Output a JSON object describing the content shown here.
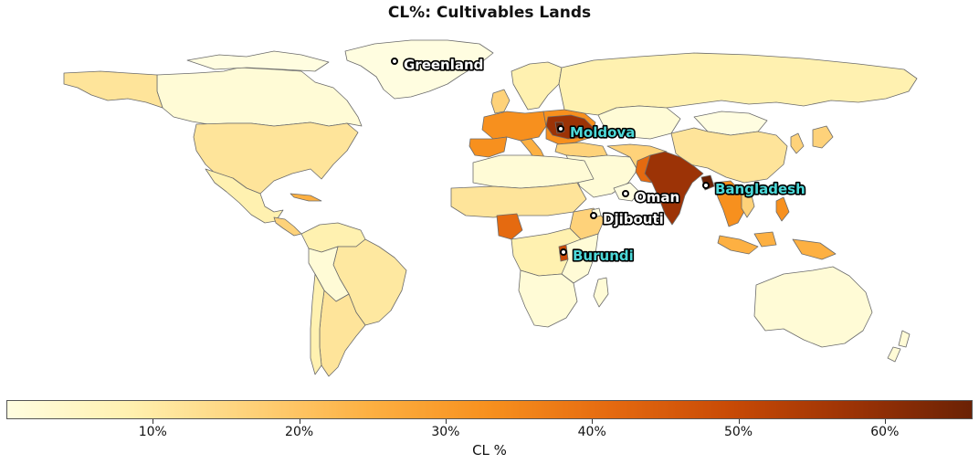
{
  "title": "CL%: Cultivables Lands",
  "colorbar": {
    "label": "CL %",
    "min": 0,
    "max": 66,
    "colors": [
      "#fffde0",
      "#fff1b0",
      "#fed27a",
      "#fdb042",
      "#f7901e",
      "#e56a10",
      "#c84a06",
      "#9c3306",
      "#6b2205"
    ],
    "ticks": [
      "10%",
      "20%",
      "30%",
      "40%",
      "50%",
      "60%"
    ],
    "tick_values": [
      10,
      20,
      30,
      40,
      50,
      60
    ]
  },
  "labels": [
    {
      "name": "Greenland",
      "color": "#ffffff"
    },
    {
      "name": "Moldova",
      "color": "#4dd9d9"
    },
    {
      "name": "Oman",
      "color": "#ffffff"
    },
    {
      "name": "Bangladesh",
      "color": "#4dd9d9"
    },
    {
      "name": "Djibouti",
      "color": "#ffffff"
    },
    {
      "name": "Burundi",
      "color": "#4dd9d9"
    }
  ]
}
